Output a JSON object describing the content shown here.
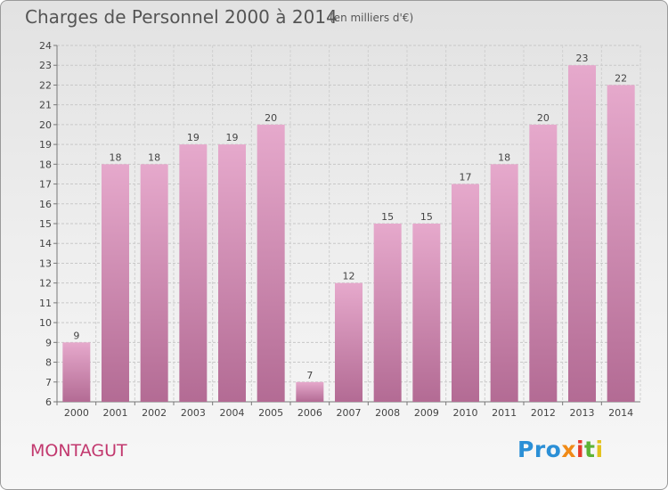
{
  "title": "Charges de Personnel 2000 à 2014",
  "subtitle": "(en milliers d'€)",
  "commune": "MONTAGUT",
  "logo": {
    "p1": "Pro",
    "p2": "x",
    "p3": "i",
    "p4": "t",
    "p5": "i"
  },
  "colors": {
    "bar": "#d98fb8",
    "label": "#c2386e"
  },
  "chart_data": {
    "type": "bar",
    "categories": [
      "2000",
      "2001",
      "2002",
      "2003",
      "2004",
      "2005",
      "2006",
      "2007",
      "2008",
      "2009",
      "2010",
      "2011",
      "2012",
      "2013",
      "2014"
    ],
    "values": [
      9,
      18,
      18,
      19,
      19,
      20,
      7,
      12,
      15,
      15,
      17,
      18,
      20,
      23,
      22
    ],
    "title": "Charges de Personnel 2000 à 2014",
    "ylim": [
      6,
      24
    ],
    "yticks": [
      6,
      7,
      8,
      9,
      10,
      11,
      12,
      13,
      14,
      15,
      16,
      17,
      18,
      19,
      20,
      21,
      22,
      23,
      24
    ],
    "grid": true
  }
}
